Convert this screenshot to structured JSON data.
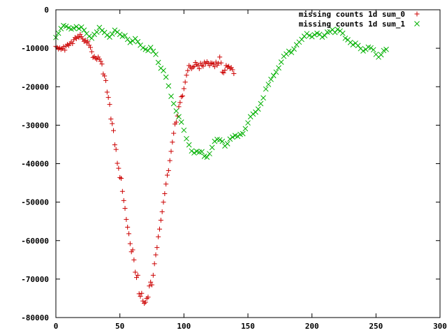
{
  "chart_data": {
    "type": "scatter",
    "title": "",
    "xlabel": "",
    "ylabel": "",
    "xlim": [
      0,
      300
    ],
    "ylim": [
      -80000,
      0
    ],
    "xticks": [
      0,
      50,
      100,
      150,
      200,
      250,
      300
    ],
    "yticks": [
      0,
      -10000,
      -20000,
      -30000,
      -40000,
      -50000,
      -60000,
      -70000,
      -80000
    ],
    "legend_position": "top-right",
    "grid": false,
    "series": [
      {
        "name": "missing counts 1d sum_0",
        "marker": "plus",
        "color": "#cc0000",
        "x": [
          0,
          1,
          2,
          3,
          4,
          5,
          6,
          7,
          8,
          9,
          10,
          11,
          12,
          13,
          14,
          15,
          16,
          17,
          18,
          19,
          20,
          21,
          22,
          23,
          24,
          25,
          26,
          27,
          28,
          29,
          30,
          31,
          32,
          33,
          34,
          35,
          36,
          37,
          38,
          39,
          40,
          41,
          42,
          43,
          44,
          45,
          46,
          47,
          48,
          49,
          50,
          51,
          52,
          53,
          54,
          55,
          56,
          57,
          58,
          59,
          60,
          61,
          62,
          63,
          64,
          65,
          66,
          67,
          68,
          69,
          70,
          71,
          72,
          73,
          74,
          75,
          76,
          77,
          78,
          79,
          80,
          81,
          82,
          83,
          84,
          85,
          86,
          87,
          88,
          89,
          90,
          91,
          92,
          93,
          94,
          95,
          96,
          97,
          98,
          99,
          100,
          101,
          102,
          103,
          104,
          105,
          106,
          107,
          108,
          109,
          110,
          111,
          112,
          113,
          114,
          115,
          116,
          117,
          118,
          119,
          120,
          121,
          122,
          123,
          124,
          125,
          126,
          127,
          128,
          129,
          130,
          131,
          132,
          133,
          134,
          135,
          136,
          137,
          138,
          139
        ],
        "y": [
          -9500,
          -9800,
          -10200,
          -9900,
          -10300,
          -10100,
          -9600,
          -10500,
          -9400,
          -9000,
          -9300,
          -8800,
          -8400,
          -8800,
          -7800,
          -7200,
          -7500,
          -6900,
          -7200,
          -6400,
          -7000,
          -7600,
          -8200,
          -7900,
          -8600,
          -8300,
          -9200,
          -9800,
          -10900,
          -12400,
          -12100,
          -12600,
          -12900,
          -12300,
          -12800,
          -13400,
          -14100,
          -16700,
          -17200,
          -18400,
          -21400,
          -22800,
          -24600,
          -28400,
          -29600,
          -31400,
          -35100,
          -36300,
          -39900,
          -41200,
          -43600,
          -43800,
          -47200,
          -49600,
          -51600,
          -54500,
          -56500,
          -58200,
          -60800,
          -62900,
          -62400,
          -65000,
          -68200,
          -69600,
          -69000,
          -73800,
          -74500,
          -73700,
          -75700,
          -76300,
          -76000,
          -75000,
          -74700,
          -71800,
          -70800,
          -71500,
          -69000,
          -66000,
          -63700,
          -61800,
          -59000,
          -57000,
          -54700,
          -52500,
          -50000,
          -47800,
          -45300,
          -43000,
          -41800,
          -39200,
          -36800,
          -34400,
          -32100,
          -29700,
          -29200,
          -27600,
          -25200,
          -24100,
          -22600,
          -22400,
          -20500,
          -18800,
          -17000,
          -15800,
          -14500,
          -14900,
          -15300,
          -14900,
          -14700,
          -13700,
          -14200,
          -14500,
          -15300,
          -13900,
          -14400,
          -14700,
          -13600,
          -14000,
          -13500,
          -13900,
          -14500,
          -13800,
          -13900,
          -14100,
          -14800,
          -13600,
          -14400,
          -13900,
          -12300,
          -13800,
          -16200,
          -16400,
          -15700,
          -14500,
          -14900,
          -14700,
          -15300,
          -15000,
          -15600,
          -16600
        ]
      },
      {
        "name": "missing counts 1d sum_1",
        "marker": "cross",
        "color": "#00b000",
        "x": [
          0,
          2,
          4,
          6,
          8,
          10,
          12,
          14,
          16,
          18,
          20,
          22,
          24,
          26,
          28,
          30,
          32,
          34,
          36,
          38,
          40,
          42,
          44,
          46,
          48,
          50,
          52,
          54,
          56,
          58,
          60,
          62,
          64,
          66,
          68,
          70,
          72,
          74,
          76,
          78,
          80,
          82,
          84,
          86,
          88,
          90,
          92,
          94,
          96,
          98,
          100,
          102,
          104,
          106,
          108,
          110,
          112,
          114,
          116,
          118,
          120,
          122,
          124,
          126,
          128,
          130,
          132,
          134,
          136,
          138,
          140,
          142,
          144,
          146,
          148,
          150,
          152,
          154,
          156,
          158,
          160,
          162,
          164,
          166,
          168,
          170,
          172,
          174,
          176,
          178,
          180,
          182,
          184,
          186,
          188,
          190,
          192,
          194,
          196,
          198,
          200,
          202,
          204,
          206,
          208,
          210,
          212,
          214,
          216,
          218,
          220,
          222,
          224,
          226,
          228,
          230,
          232,
          234,
          236,
          238,
          240,
          242,
          244,
          246,
          248,
          250,
          252,
          254,
          256,
          258
        ],
        "y": [
          -7200,
          -6100,
          -4900,
          -4100,
          -4300,
          -4700,
          -5000,
          -4800,
          -4400,
          -4900,
          -4500,
          -5300,
          -6200,
          -6900,
          -7400,
          -6400,
          -5800,
          -4600,
          -5400,
          -5900,
          -6600,
          -7100,
          -6300,
          -5300,
          -5800,
          -6400,
          -6900,
          -6700,
          -7700,
          -8500,
          -8100,
          -7500,
          -8300,
          -9200,
          -9900,
          -10300,
          -10600,
          -9800,
          -10800,
          -11600,
          -13700,
          -15200,
          -15800,
          -17500,
          -19800,
          -22500,
          -24400,
          -26300,
          -27800,
          -29200,
          -31300,
          -33500,
          -35100,
          -36700,
          -37200,
          -36800,
          -37000,
          -36900,
          -38100,
          -38300,
          -37400,
          -35800,
          -34200,
          -33700,
          -33800,
          -34200,
          -35400,
          -34800,
          -33600,
          -33100,
          -32700,
          -32900,
          -32400,
          -32200,
          -30900,
          -29400,
          -27800,
          -27100,
          -26600,
          -25800,
          -24400,
          -22900,
          -20600,
          -19400,
          -18100,
          -17100,
          -16200,
          -15100,
          -13600,
          -12100,
          -11500,
          -10800,
          -11100,
          -10200,
          -9100,
          -8400,
          -7700,
          -6900,
          -6200,
          -6700,
          -7000,
          -6500,
          -6100,
          -6400,
          -7100,
          -6700,
          -5800,
          -5700,
          -5200,
          -5900,
          -5100,
          -5500,
          -6100,
          -7400,
          -7800,
          -8500,
          -9100,
          -8700,
          -9300,
          -10100,
          -10700,
          -10300,
          -9700,
          -9900,
          -10400,
          -11600,
          -12300,
          -11700,
          -10600,
          -10300
        ]
      }
    ]
  }
}
